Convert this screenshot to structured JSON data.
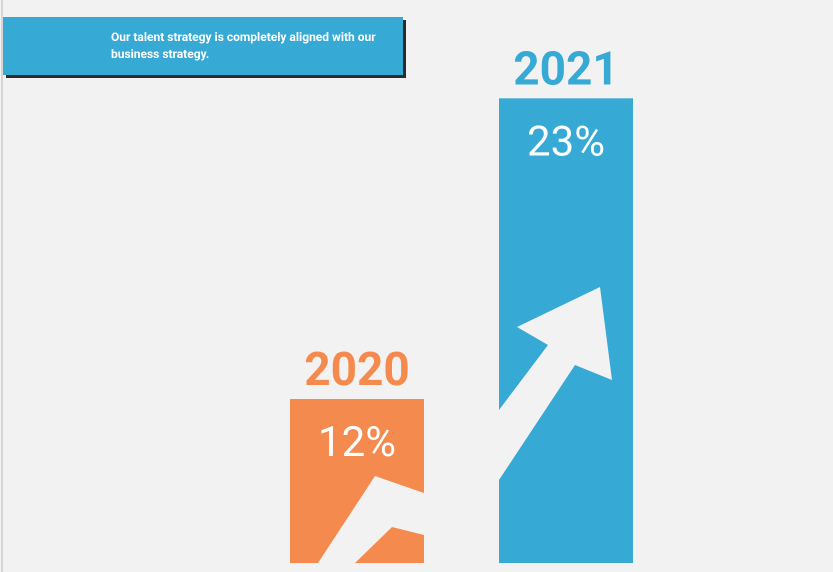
{
  "chart_data": {
    "type": "bar",
    "title": "Our talent strategy is completely aligned with our business strategy.",
    "categories": [
      "2020",
      "2021"
    ],
    "values": [
      12,
      23
    ],
    "value_labels": [
      "12%",
      "23%"
    ],
    "colors": [
      "#f58a4e",
      "#36a9d5"
    ],
    "ylim": [
      6,
      24
    ]
  }
}
